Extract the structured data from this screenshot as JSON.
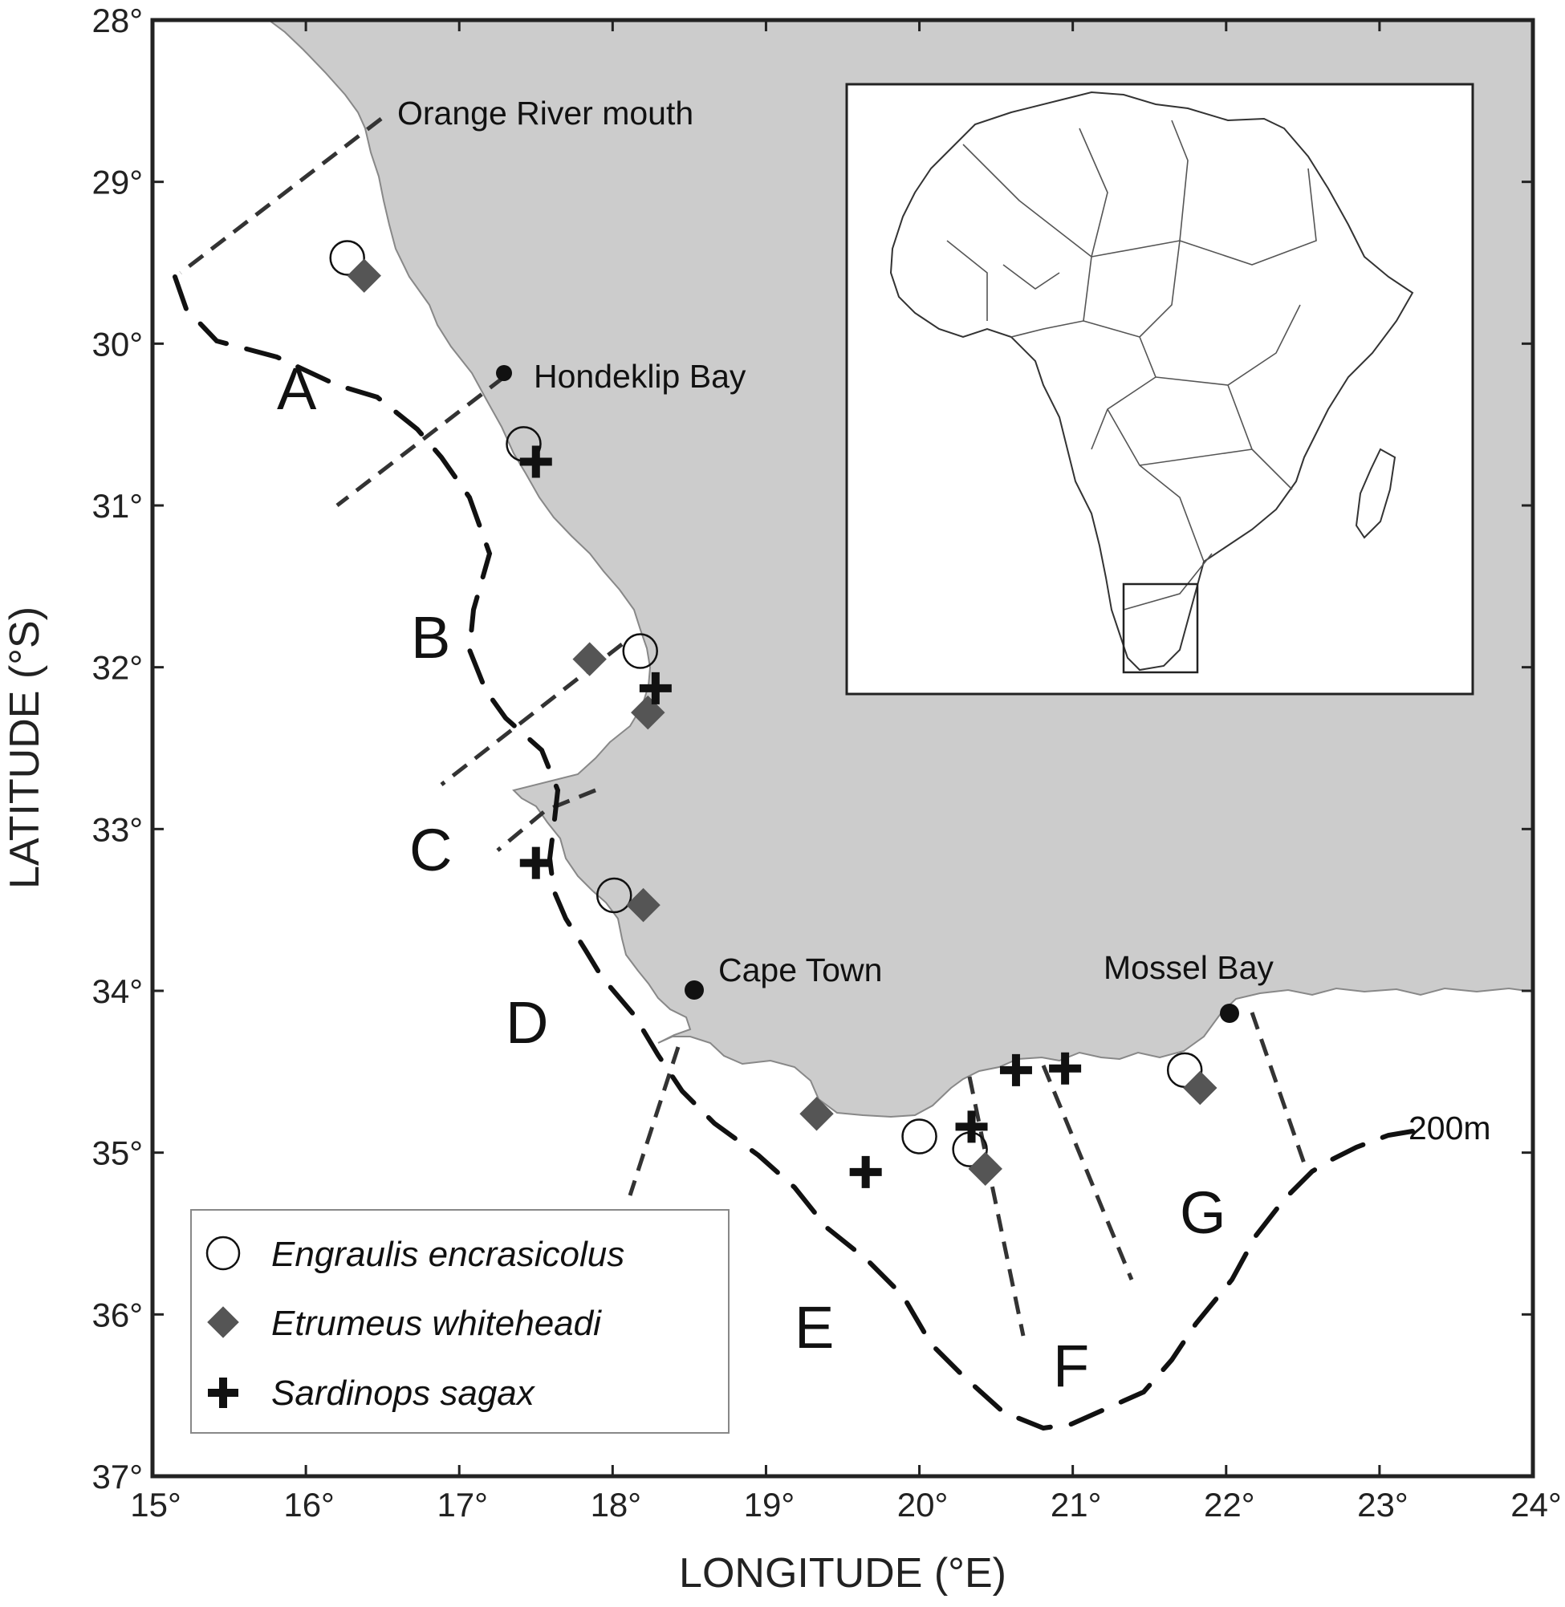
{
  "map": {
    "x_ticks": [
      "15°",
      "16°",
      "17°",
      "18°",
      "19°",
      "20°",
      "21°",
      "22°",
      "23°",
      "24°"
    ],
    "y_ticks": [
      "28°",
      "29°",
      "30°",
      "31°",
      "32°",
      "33°",
      "34°",
      "35°",
      "36°",
      "37°"
    ],
    "xlabel": "LONGITUDE (°E)",
    "ylabel": "LATITUDE (°S)",
    "lon_range": [
      15,
      24
    ],
    "lat_range": [
      28,
      37
    ],
    "places": {
      "orange_river": "Orange River mouth",
      "hondeklip": "Hondeklip Bay",
      "cape_town": "Cape Town",
      "mossel_bay": "Mossel Bay"
    },
    "zones": [
      "A",
      "B",
      "C",
      "D",
      "E",
      "F",
      "G"
    ],
    "isobath_label": "200m",
    "legend": {
      "engraulis": "Engraulis encrasicolus",
      "etrumeus": "Etrumeus whiteheadi",
      "sardinops": "Sardinops sagax"
    },
    "colors": {
      "land": "#cccccc",
      "sea": "#ffffff",
      "etrumeus_marker": "#555555",
      "sardinops_marker": "#111111"
    }
  },
  "chart_data": {
    "type": "scatter",
    "series": [
      {
        "name": "Engraulis encrasicolus",
        "marker": "open-circle",
        "points": [
          [
            16.27,
            29.47
          ],
          [
            17.42,
            30.62
          ],
          [
            18.18,
            31.9
          ],
          [
            18.01,
            33.41
          ],
          [
            20.0,
            34.9
          ],
          [
            20.33,
            34.98
          ],
          [
            21.73,
            34.49
          ]
        ]
      },
      {
        "name": "Etrumeus whiteheadi",
        "marker": "diamond",
        "points": [
          [
            16.38,
            29.58
          ],
          [
            17.85,
            31.95
          ],
          [
            18.23,
            32.28
          ],
          [
            18.2,
            33.47
          ],
          [
            19.33,
            34.76
          ],
          [
            20.43,
            35.1
          ],
          [
            21.83,
            34.6
          ]
        ]
      },
      {
        "name": "Sardinops sagax",
        "marker": "plus",
        "points": [
          [
            17.5,
            30.73
          ],
          [
            18.28,
            32.13
          ],
          [
            17.5,
            33.21
          ],
          [
            19.65,
            35.12
          ],
          [
            20.34,
            34.84
          ],
          [
            20.63,
            34.49
          ],
          [
            20.95,
            34.48
          ]
        ]
      }
    ]
  }
}
